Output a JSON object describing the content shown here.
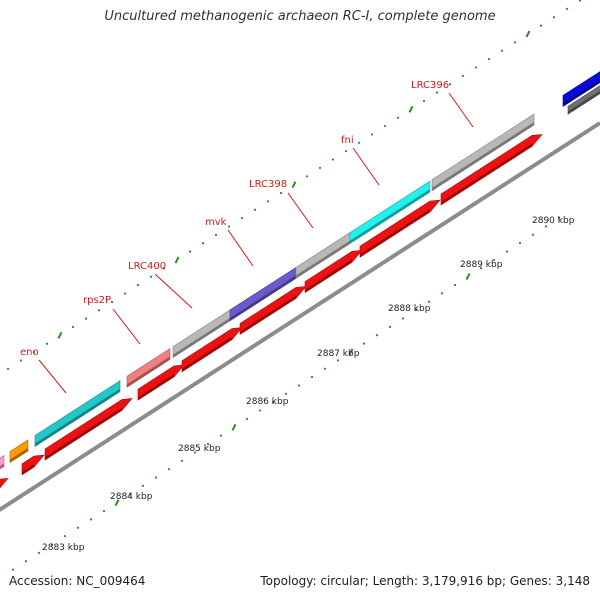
{
  "title": "Uncultured methanogenic archaeon RC-I, complete genome",
  "footer": {
    "accession": "Accession: NC_009464",
    "summary": "Topology: circular; Length: 3,179,916 bp; Genes: 3,148"
  },
  "colors": {
    "backbone": "#8c8c8c",
    "tick": "#2e8b22",
    "label": "#d41818",
    "kbp_label": "#202020",
    "cds": "#ee1111",
    "gray_gene": "#b8b8b8",
    "cyan_gene": "#22c8c8",
    "bright_cyan_gene": "#22f0f0",
    "salmon_gene": "#f08080",
    "purple_gene": "#6a5acd",
    "orange_gene": "#ff9900",
    "blue_gene": "#0a0ad8",
    "dark_gray_gene": "#707070",
    "pink_gene": "#ff99cc"
  },
  "scale_labels": [
    "2883 kbp",
    "2884 kbp",
    "2885 kbp",
    "2886 kbp",
    "2887 kbp",
    "2888 kbp",
    "2889 kbp",
    "2890 kbp"
  ],
  "gene_labels": [
    "eno",
    "rps2P",
    "LRC400",
    "mvk",
    "LRC398",
    "fni",
    "LRC396"
  ]
}
